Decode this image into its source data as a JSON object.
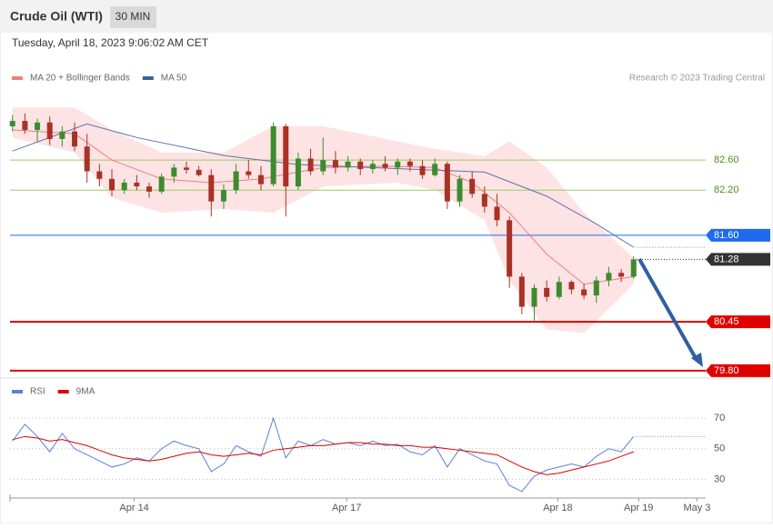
{
  "header": {
    "title": "Crude Oil (WTI)",
    "interval": "30 MIN",
    "timestamp": "Tuesday, April 18, 2023 9:06:02 AM CET",
    "credit": "Research © 2023 Trading Central"
  },
  "chart_data": [
    {
      "type": "candlestick",
      "legend": [
        {
          "name": "MA 20 + Bollinger Bands",
          "color": "#f08080"
        },
        {
          "name": "MA 50",
          "color": "#3a5f9e"
        }
      ],
      "xlim": [
        -0.2,
        55.8
      ],
      "ylim": [
        79.75,
        83.52
      ],
      "xticks": [
        {
          "value": 9.8,
          "label": "Apr 14"
        },
        {
          "value": 26.9,
          "label": "Apr 17"
        },
        {
          "value": 43.9,
          "label": "Apr 18"
        },
        {
          "value": 50.4,
          "label": "Apr 19"
        },
        {
          "value": 55.1,
          "label": "May 3"
        }
      ],
      "up_color": "#3d8b2f",
      "down_color": "#a93226",
      "open": [
        83.05,
        83.12,
        83.0,
        83.1,
        82.88,
        82.98,
        82.78,
        82.45,
        82.35,
        82.2,
        82.3,
        82.25,
        82.18,
        82.38,
        82.5,
        82.47,
        82.4,
        82.05,
        82.2,
        82.45,
        82.4,
        82.28,
        83.05,
        82.25,
        82.62,
        82.45,
        82.6,
        82.5,
        82.58,
        82.48,
        82.55,
        82.5,
        82.58,
        82.52,
        82.4,
        82.55,
        82.05,
        82.35,
        82.15,
        81.98,
        81.8,
        81.05,
        80.65,
        80.9,
        80.78,
        80.98,
        80.88,
        80.8,
        81.0,
        81.1,
        81.05
      ],
      "high": [
        83.2,
        83.22,
        83.15,
        83.18,
        83.05,
        83.1,
        82.95,
        82.55,
        82.48,
        82.35,
        82.4,
        82.3,
        82.42,
        82.55,
        82.58,
        82.52,
        82.48,
        82.28,
        82.55,
        82.6,
        82.52,
        83.1,
        83.08,
        82.7,
        82.75,
        82.9,
        82.72,
        82.65,
        82.62,
        82.6,
        82.65,
        82.62,
        82.62,
        82.6,
        82.62,
        82.58,
        82.4,
        82.45,
        82.25,
        82.15,
        81.85,
        81.1,
        80.95,
        81.0,
        81.05,
        81.0,
        80.95,
        81.05,
        81.18,
        81.15,
        81.32
      ],
      "low": [
        82.98,
        82.95,
        82.85,
        82.8,
        82.78,
        82.72,
        82.3,
        82.25,
        82.12,
        82.15,
        82.2,
        82.1,
        82.15,
        82.3,
        82.42,
        82.38,
        81.85,
        81.95,
        82.15,
        82.35,
        82.2,
        82.25,
        81.85,
        82.2,
        82.4,
        82.4,
        82.42,
        82.45,
        82.4,
        82.42,
        82.45,
        82.4,
        82.45,
        82.35,
        82.38,
        81.95,
        81.98,
        82.1,
        81.9,
        81.72,
        80.9,
        80.55,
        80.45,
        80.72,
        80.75,
        80.82,
        80.75,
        80.7,
        80.92,
        80.98,
        81.02
      ],
      "close": [
        83.12,
        83.0,
        83.1,
        82.88,
        82.98,
        82.78,
        82.45,
        82.35,
        82.2,
        82.3,
        82.25,
        82.18,
        82.38,
        82.5,
        82.47,
        82.4,
        82.05,
        82.2,
        82.45,
        82.4,
        82.28,
        83.05,
        82.25,
        82.62,
        82.45,
        82.6,
        82.5,
        82.58,
        82.48,
        82.55,
        82.5,
        82.58,
        82.52,
        82.4,
        82.55,
        82.05,
        82.35,
        82.15,
        81.98,
        81.8,
        81.05,
        80.65,
        80.9,
        80.78,
        80.98,
        80.88,
        80.8,
        81.0,
        81.1,
        81.05,
        81.28
      ],
      "bands": {
        "x": [
          0,
          5,
          8,
          12,
          17,
          21,
          25,
          31,
          34,
          38,
          40,
          43,
          46,
          50
        ],
        "upper": [
          83.3,
          83.3,
          83.0,
          82.7,
          82.7,
          83.05,
          83.05,
          82.85,
          82.75,
          82.65,
          82.85,
          82.5,
          81.9,
          81.3
        ],
        "lower": [
          82.9,
          82.7,
          82.1,
          81.9,
          81.95,
          81.9,
          82.25,
          82.3,
          82.2,
          81.8,
          81.0,
          80.35,
          80.3,
          80.95
        ],
        "color": "#fde0e0"
      },
      "series": [
        {
          "name": "MA 20",
          "color": "#f08080",
          "x": [
            0,
            5,
            8,
            12,
            16,
            20,
            25,
            30,
            34,
            37,
            40,
            43,
            46,
            50
          ],
          "values": [
            83.0,
            82.95,
            82.6,
            82.35,
            82.3,
            82.35,
            82.5,
            82.52,
            82.5,
            82.3,
            81.9,
            81.35,
            80.95,
            81.05
          ]
        },
        {
          "name": "MA 50",
          "color": "#5a73b0",
          "x": [
            0,
            6,
            10,
            17,
            23,
            32,
            38,
            43,
            47,
            50
          ],
          "values": [
            82.72,
            83.08,
            82.9,
            82.66,
            82.54,
            82.48,
            82.44,
            82.12,
            81.75,
            81.44
          ]
        }
      ],
      "levels": [
        {
          "value": 82.6,
          "label": "82.60",
          "color": "#9ccc65",
          "style": "thin"
        },
        {
          "value": 82.2,
          "label": "82.20",
          "color": "#9ccc65",
          "style": "thin"
        },
        {
          "value": 81.6,
          "label": "81.60",
          "color": "#1e6bf0",
          "style": "solid"
        },
        {
          "value": 81.28,
          "color": "#333333",
          "style": "dotted"
        },
        {
          "value": 80.45,
          "label": "80.45",
          "color": "#e00000",
          "style": "thick"
        },
        {
          "value": 79.8,
          "label": "79.80",
          "color": "#e00000",
          "style": "thick"
        }
      ]
    },
    {
      "type": "line",
      "legend": [
        {
          "name": "RSI",
          "color": "#5b7fd6"
        },
        {
          "name": "9MA",
          "color": "#e00000"
        }
      ],
      "ylim": [
        19.5,
        82
      ],
      "yticks": [
        70,
        50,
        30
      ],
      "series": [
        {
          "name": "RSI",
          "color": "#5b7fd6",
          "values": [
            55,
            66,
            58,
            48,
            60,
            50,
            46,
            42,
            38,
            40,
            44,
            42,
            50,
            55,
            52,
            50,
            35,
            40,
            52,
            48,
            45,
            70,
            44,
            55,
            52,
            56,
            53,
            54,
            52,
            55,
            52,
            53,
            48,
            46,
            52,
            38,
            50,
            46,
            42,
            40,
            26,
            22,
            32,
            36,
            38,
            40,
            38,
            45,
            50,
            48,
            58
          ]
        },
        {
          "name": "9MA",
          "color": "#e00000",
          "values": [
            56,
            58,
            57,
            55,
            56,
            54,
            52,
            49,
            46,
            44,
            43,
            42,
            43,
            45,
            47,
            48,
            46,
            45,
            46,
            47,
            46,
            49,
            50,
            51,
            52,
            52,
            53,
            54,
            54,
            53,
            53,
            52,
            52,
            51,
            51,
            50,
            49,
            48,
            47,
            46,
            42,
            38,
            35,
            33,
            34,
            36,
            38,
            40,
            42,
            45,
            48
          ]
        }
      ]
    }
  ]
}
